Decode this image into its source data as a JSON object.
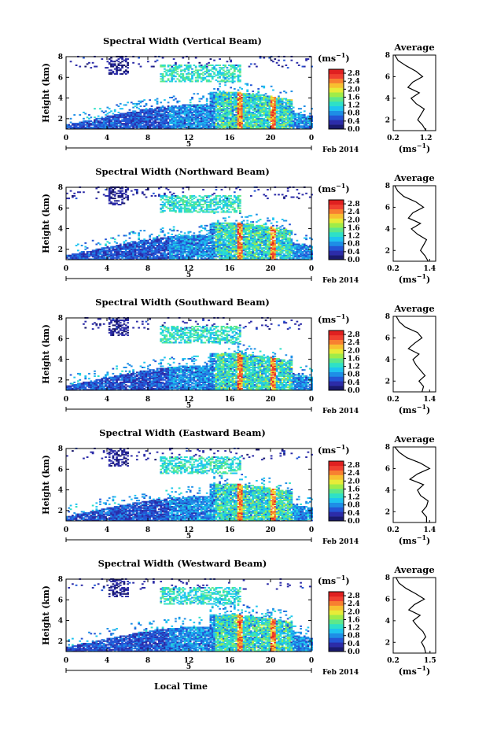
{
  "figure": {
    "xlabel": "Local Time",
    "date_day": "5",
    "date_month_year": "Feb 2014"
  },
  "colors": {
    "palette": [
      "#1a1a6e",
      "#2c2ca8",
      "#2456d6",
      "#1e8ee6",
      "#1ec4f0",
      "#2ee0c8",
      "#5ee88a",
      "#a0ec48",
      "#e8ec38",
      "#f8c030",
      "#f88030",
      "#f04030",
      "#e02020"
    ]
  },
  "chart_data": [
    {
      "type": "heatmap",
      "title": "Spectral Width (Vertical Beam)",
      "xlabel": "",
      "ylabel": "Height (km)",
      "xlim": [
        0,
        24
      ],
      "ylim": [
        1,
        8
      ],
      "xticks": [
        "0",
        "4",
        "8",
        "12",
        "16",
        "20",
        "0"
      ],
      "yticks": [
        "2",
        "4",
        "6",
        "8"
      ],
      "colorbar": {
        "unit": "(ms",
        "unit_exp": "−1",
        "unit_close": ")",
        "ticks": [
          "0.0",
          "0.4",
          "0.8",
          "1.2",
          "1.6",
          "2.0",
          "2.4",
          "2.8"
        ],
        "range": [
          0,
          3.0
        ]
      },
      "profile": {
        "title": "Average",
        "xticks": [
          "0.2",
          "1.2"
        ],
        "xlim": [
          0.2,
          1.5
        ],
        "unit": "(ms",
        "unit_exp": "−1",
        "unit_close": ")",
        "heights": [
          1.0,
          1.5,
          2.0,
          2.5,
          3.0,
          3.5,
          4.0,
          4.5,
          5.0,
          5.5,
          6.0,
          6.5,
          7.0,
          7.5,
          8.0
        ],
        "values": [
          1.2,
          1.1,
          0.95,
          1.05,
          1.15,
          0.9,
          0.75,
          1.0,
          0.65,
          0.8,
          1.1,
          0.9,
          0.6,
          0.35,
          0.25
        ]
      }
    },
    {
      "type": "heatmap",
      "title": "Spectral Width (Northward Beam)",
      "xlabel": "",
      "ylabel": "Height (km)",
      "xlim": [
        0,
        24
      ],
      "ylim": [
        1,
        8
      ],
      "xticks": [
        "0",
        "4",
        "8",
        "12",
        "16",
        "20",
        "0"
      ],
      "yticks": [
        "2",
        "4",
        "6",
        "8"
      ],
      "colorbar": {
        "unit": "(ms",
        "unit_exp": "−1",
        "unit_close": ")",
        "ticks": [
          "0.0",
          "0.4",
          "0.8",
          "1.2",
          "1.6",
          "2.0",
          "2.4",
          "2.8"
        ],
        "range": [
          0,
          3.0
        ]
      },
      "profile": {
        "title": "Average",
        "xticks": [
          "0.2",
          "1.4"
        ],
        "xlim": [
          0.2,
          1.6
        ],
        "unit": "(ms",
        "unit_exp": "−1",
        "unit_close": ")",
        "heights": [
          1.0,
          1.5,
          2.0,
          2.5,
          3.0,
          3.5,
          4.0,
          4.5,
          5.0,
          5.5,
          6.0,
          6.5,
          7.0,
          7.5,
          8.0
        ],
        "values": [
          1.35,
          1.25,
          1.1,
          1.2,
          1.3,
          1.0,
          0.8,
          1.1,
          0.7,
          0.85,
          1.2,
          0.95,
          0.55,
          0.35,
          0.25
        ]
      }
    },
    {
      "type": "heatmap",
      "title": "Spectral Width (Southward Beam)",
      "xlabel": "",
      "ylabel": "Height (km)",
      "xlim": [
        0,
        24
      ],
      "ylim": [
        1,
        8
      ],
      "xticks": [
        "0",
        "4",
        "8",
        "12",
        "16",
        "20",
        "0"
      ],
      "yticks": [
        "2",
        "4",
        "6",
        "8"
      ],
      "colorbar": {
        "unit": "(ms",
        "unit_exp": "−1",
        "unit_close": ")",
        "ticks": [
          "0.0",
          "0.4",
          "0.8",
          "1.2",
          "1.6",
          "2.0",
          "2.4",
          "2.8"
        ],
        "range": [
          0,
          3.0
        ]
      },
      "profile": {
        "title": "Average",
        "xticks": [
          "0.2",
          "1.4"
        ],
        "xlim": [
          0.2,
          1.6
        ],
        "unit": "(ms",
        "unit_exp": "−1",
        "unit_close": ")",
        "heights": [
          1.0,
          1.5,
          2.0,
          2.5,
          3.0,
          3.5,
          4.0,
          4.5,
          5.0,
          5.5,
          6.0,
          6.5,
          7.0,
          7.5,
          8.0
        ],
        "values": [
          1.15,
          1.2,
          1.05,
          1.25,
          1.1,
          0.95,
          0.85,
          1.05,
          0.7,
          0.9,
          1.15,
          1.0,
          0.6,
          0.4,
          0.3
        ]
      }
    },
    {
      "type": "heatmap",
      "title": "Spectral Width (Eastward Beam)",
      "xlabel": "",
      "ylabel": "Height (km)",
      "xlim": [
        0,
        24
      ],
      "ylim": [
        1,
        8
      ],
      "xticks": [
        "0",
        "4",
        "8",
        "12",
        "16",
        "20",
        "0"
      ],
      "yticks": [
        "2",
        "4",
        "6",
        "8"
      ],
      "colorbar": {
        "unit": "(ms",
        "unit_exp": "−1",
        "unit_close": ")",
        "ticks": [
          "0.0",
          "0.4",
          "0.8",
          "1.2",
          "1.6",
          "2.0",
          "2.4",
          "2.8"
        ],
        "range": [
          0,
          3.0
        ]
      },
      "profile": {
        "title": "Average",
        "xticks": [
          "0.2",
          "1.4"
        ],
        "xlim": [
          0.2,
          1.6
        ],
        "unit": "(ms",
        "unit_exp": "−1",
        "unit_close": ")",
        "heights": [
          1.0,
          1.5,
          2.0,
          2.5,
          3.0,
          3.5,
          4.0,
          4.5,
          5.0,
          5.5,
          6.0,
          6.5,
          7.0,
          7.5,
          8.0
        ],
        "values": [
          1.3,
          1.3,
          1.15,
          1.3,
          1.35,
          1.1,
          1.0,
          1.2,
          0.75,
          1.0,
          1.4,
          1.1,
          0.65,
          0.4,
          0.25
        ]
      }
    },
    {
      "type": "heatmap",
      "title": "Spectral Width (Westward Beam)",
      "xlabel": "Local Time",
      "ylabel": "Height (km)",
      "xlim": [
        0,
        24
      ],
      "ylim": [
        1,
        8
      ],
      "xticks": [
        "0",
        "4",
        "8",
        "12",
        "16",
        "20",
        "0"
      ],
      "yticks": [
        "2",
        "4",
        "6",
        "8"
      ],
      "colorbar": {
        "unit": "(ms",
        "unit_exp": "−1",
        "unit_close": ")",
        "ticks": [
          "0.0",
          "0.4",
          "0.8",
          "1.2",
          "1.6",
          "2.0",
          "2.4",
          "2.8"
        ],
        "range": [
          0,
          3.0
        ]
      },
      "profile": {
        "title": "Average",
        "xticks": [
          "0.2",
          "1.5"
        ],
        "xlim": [
          0.2,
          1.7
        ],
        "unit": "(ms",
        "unit_exp": "−1",
        "unit_close": ")",
        "heights": [
          1.0,
          1.5,
          2.0,
          2.5,
          3.0,
          3.5,
          4.0,
          4.5,
          5.0,
          5.5,
          6.0,
          6.5,
          7.0,
          7.5,
          8.0
        ],
        "values": [
          1.35,
          1.3,
          1.2,
          1.35,
          1.25,
          1.05,
          0.9,
          1.15,
          0.75,
          0.95,
          1.3,
          1.0,
          0.65,
          0.4,
          0.3
        ]
      }
    }
  ]
}
